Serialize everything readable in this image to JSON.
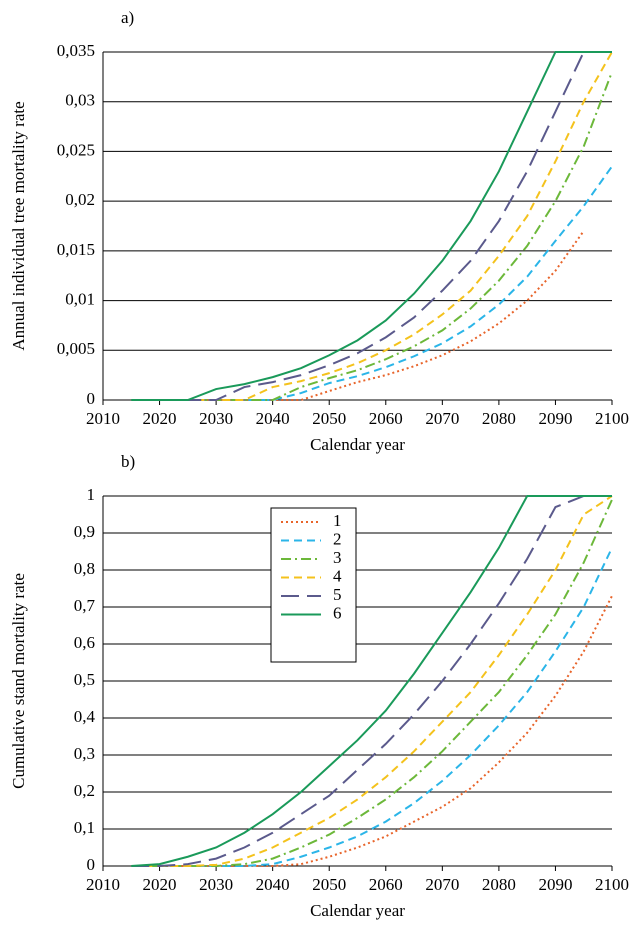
{
  "chart_data": [
    {
      "type": "line",
      "panel_label": "a)",
      "xlabel": "Calendar year",
      "ylabel": "Annual individual tree mortality rate",
      "x": [
        2015,
        2020,
        2025,
        2030,
        2035,
        2040,
        2045,
        2050,
        2055,
        2060,
        2065,
        2070,
        2075,
        2080,
        2085,
        2090,
        2095,
        2100
      ],
      "xlim": [
        2010,
        2100
      ],
      "xticks": [
        2010,
        2020,
        2030,
        2040,
        2050,
        2060,
        2070,
        2080,
        2090,
        2100
      ],
      "ylim": [
        0,
        0.035
      ],
      "yticks": [
        0,
        {
          "value": 0.005,
          "label": "0,005"
        },
        {
          "value": 0.01,
          "label": "0,01"
        },
        {
          "value": 0.015,
          "label": "0,015"
        },
        {
          "value": 0.02,
          "label": "0,02"
        },
        {
          "value": 0.025,
          "label": "0,025"
        },
        {
          "value": 0.03,
          "label": "0,03"
        },
        {
          "value": 0.035,
          "label": "0,035"
        }
      ],
      "grid": true,
      "series": [
        {
          "color": "#e8642a",
          "style": "dotted",
          "values": [
            0,
            0,
            0,
            0,
            0,
            0,
            0,
            0.0009,
            0.0018,
            0.0025,
            0.0034,
            0.0045,
            0.0059,
            0.0077,
            0.01,
            0.013,
            0.017,
            null
          ]
        },
        {
          "color": "#2bb5e8",
          "style": "dashed",
          "values": [
            0,
            0,
            0,
            0,
            0,
            0,
            0.0007,
            0.0017,
            0.0024,
            0.0033,
            0.0044,
            0.0057,
            0.0074,
            0.0096,
            0.0124,
            0.016,
            0.0195,
            0.0235
          ]
        },
        {
          "color": "#6cb83a",
          "style": "dashdot",
          "values": [
            0,
            0,
            0,
            0,
            0,
            0,
            0.0013,
            0.0022,
            0.003,
            0.0041,
            0.0054,
            0.007,
            0.0092,
            0.012,
            0.0155,
            0.02,
            0.0255,
            0.033
          ]
        },
        {
          "color": "#f4c21c",
          "style": "dashed",
          "values": [
            0,
            0,
            0,
            0,
            0,
            0.0013,
            0.0019,
            0.0027,
            0.0037,
            0.005,
            0.0066,
            0.0086,
            0.011,
            0.0145,
            0.0185,
            0.024,
            0.03,
            0.035
          ]
        },
        {
          "color": "#5b5a8c",
          "style": "longdash",
          "values": [
            0,
            0,
            0,
            0,
            0.0013,
            0.0018,
            0.0025,
            0.0035,
            0.0047,
            0.0063,
            0.0083,
            0.011,
            0.014,
            0.018,
            0.023,
            0.029,
            0.035,
            0.035
          ]
        },
        {
          "color": "#1a9a5a",
          "style": "solid",
          "values": [
            0,
            0,
            0,
            0.0011,
            0.0016,
            0.0023,
            0.0032,
            0.0045,
            0.006,
            0.008,
            0.0107,
            0.014,
            0.018,
            0.023,
            0.029,
            0.035,
            0.035,
            0.035
          ]
        }
      ]
    },
    {
      "type": "line",
      "panel_label": "b)",
      "xlabel": "Calendar year",
      "ylabel": "Cumulative stand mortality rate",
      "x": [
        2015,
        2020,
        2025,
        2030,
        2035,
        2040,
        2045,
        2050,
        2055,
        2060,
        2065,
        2070,
        2075,
        2080,
        2085,
        2090,
        2095,
        2100
      ],
      "xlim": [
        2010,
        2100
      ],
      "xticks": [
        2010,
        2020,
        2030,
        2040,
        2050,
        2060,
        2070,
        2080,
        2090,
        2100
      ],
      "ylim": [
        0,
        1
      ],
      "yticks": [
        0,
        {
          "value": 0.1,
          "label": "0,1"
        },
        {
          "value": 0.2,
          "label": "0,2"
        },
        {
          "value": 0.3,
          "label": "0,3"
        },
        {
          "value": 0.4,
          "label": "0,4"
        },
        {
          "value": 0.5,
          "label": "0,5"
        },
        {
          "value": 0.6,
          "label": "0,6"
        },
        {
          "value": 0.7,
          "label": "0,7"
        },
        {
          "value": 0.8,
          "label": "0,8"
        },
        {
          "value": 0.9,
          "label": "0,9"
        },
        1
      ],
      "grid": true,
      "legend": "upper-left",
      "series": [
        {
          "name": "1",
          "color": "#e8642a",
          "style": "dotted",
          "values": [
            0,
            0,
            0,
            0,
            0,
            0,
            0.005,
            0.025,
            0.05,
            0.08,
            0.12,
            0.16,
            0.21,
            0.28,
            0.36,
            0.46,
            0.58,
            0.73
          ]
        },
        {
          "name": "2",
          "color": "#2bb5e8",
          "style": "dashed",
          "values": [
            0,
            0,
            0,
            0,
            0,
            0.005,
            0.025,
            0.05,
            0.08,
            0.12,
            0.17,
            0.23,
            0.3,
            0.38,
            0.47,
            0.58,
            0.7,
            0.86
          ]
        },
        {
          "name": "3",
          "color": "#6cb83a",
          "style": "dashdot",
          "values": [
            0,
            0,
            0,
            0,
            0.005,
            0.02,
            0.05,
            0.085,
            0.13,
            0.18,
            0.24,
            0.31,
            0.39,
            0.47,
            0.57,
            0.68,
            0.82,
            0.99
          ]
        },
        {
          "name": "4",
          "color": "#f4c21c",
          "style": "dashed",
          "values": [
            0,
            0,
            0,
            0.003,
            0.02,
            0.05,
            0.09,
            0.13,
            0.18,
            0.24,
            0.31,
            0.39,
            0.47,
            0.57,
            0.68,
            0.8,
            0.95,
            1
          ]
        },
        {
          "name": "5",
          "color": "#5b5a8c",
          "style": "longdash",
          "values": [
            0,
            0,
            0.005,
            0.02,
            0.05,
            0.09,
            0.14,
            0.19,
            0.26,
            0.33,
            0.41,
            0.5,
            0.6,
            0.71,
            0.83,
            0.97,
            1,
            1
          ]
        },
        {
          "name": "6",
          "color": "#1a9a5a",
          "style": "solid",
          "values": [
            0,
            0.005,
            0.025,
            0.05,
            0.09,
            0.14,
            0.2,
            0.27,
            0.34,
            0.42,
            0.52,
            0.63,
            0.74,
            0.86,
            1,
            1,
            1,
            1
          ]
        }
      ]
    }
  ]
}
